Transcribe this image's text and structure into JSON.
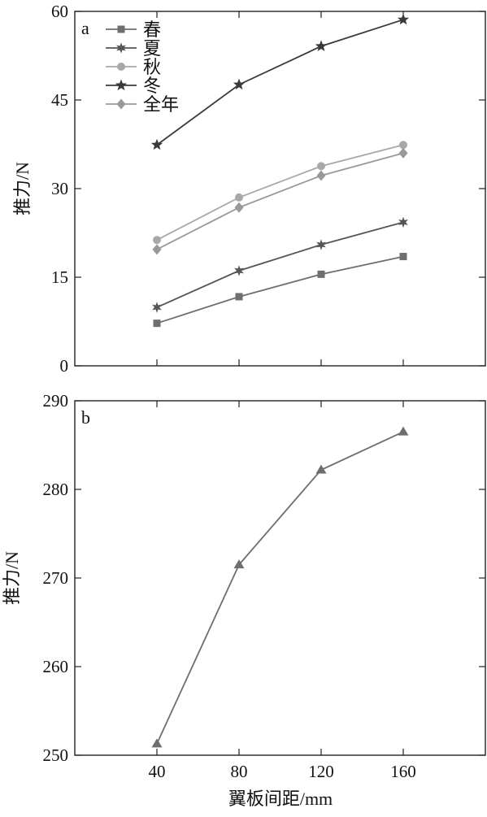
{
  "chart_data": [
    {
      "type": "line",
      "panel_label": "a",
      "title": "",
      "xlabel": "",
      "ylabel": "推力/N",
      "categories": [
        "40",
        "80",
        "120",
        "160"
      ],
      "x": [
        40,
        80,
        120,
        160
      ],
      "xlim": [
        0,
        200
      ],
      "ylim": [
        0,
        60
      ],
      "yticks": [
        0,
        15,
        30,
        45,
        60
      ],
      "grid": false,
      "legend_position": "top-left",
      "series": [
        {
          "name": "春",
          "marker": "square",
          "color": "#6e6e6e",
          "values": [
            7.2,
            11.7,
            15.5,
            18.5
          ]
        },
        {
          "name": "夏",
          "marker": "asterisk",
          "color": "#555555",
          "values": [
            9.9,
            16.1,
            20.5,
            24.3
          ]
        },
        {
          "name": "秋",
          "marker": "circle",
          "color": "#a8a8a8",
          "values": [
            21.3,
            28.5,
            33.8,
            37.4
          ]
        },
        {
          "name": "冬",
          "marker": "star",
          "color": "#3a3a3a",
          "values": [
            37.4,
            47.6,
            54.1,
            58.6
          ]
        },
        {
          "name": "全年",
          "marker": "diamond",
          "color": "#999999",
          "values": [
            19.7,
            26.8,
            32.2,
            36.0
          ]
        }
      ]
    },
    {
      "type": "line",
      "panel_label": "b",
      "title": "",
      "xlabel": "翼板间距/mm",
      "ylabel": "推力/N",
      "categories": [
        "40",
        "80",
        "120",
        "160"
      ],
      "x": [
        40,
        80,
        120,
        160
      ],
      "xlim": [
        0,
        200
      ],
      "ylim": [
        250,
        290
      ],
      "yticks": [
        250,
        260,
        270,
        280,
        290
      ],
      "grid": false,
      "series": [
        {
          "marker": "triangle",
          "color": "#6e6e6e",
          "values": [
            251.3,
            271.5,
            282.2,
            286.5
          ]
        }
      ]
    }
  ]
}
